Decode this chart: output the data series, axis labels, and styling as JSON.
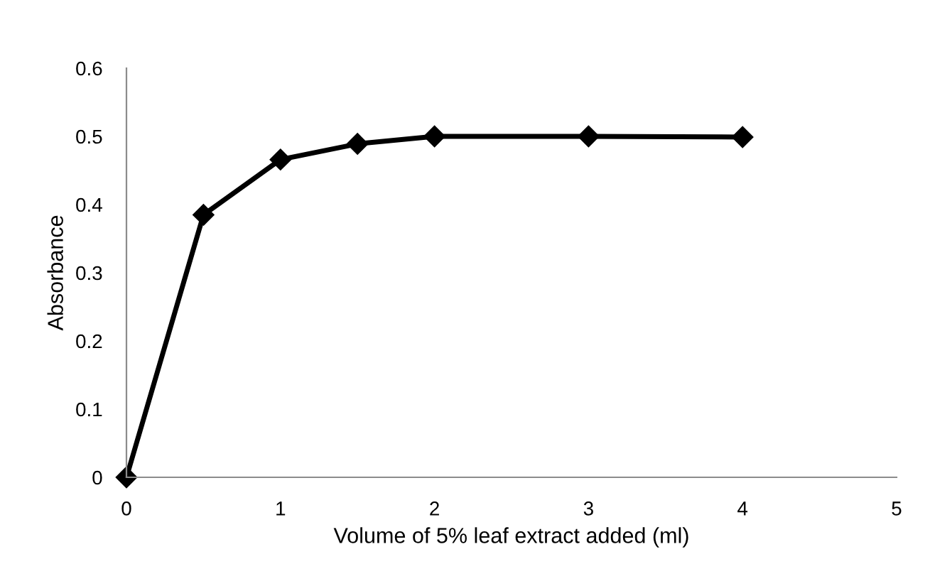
{
  "chart_data": {
    "type": "line",
    "xlabel": "Volume of 5% leaf extract added (ml)",
    "ylabel": "Absorbance",
    "x": [
      0,
      0.5,
      1,
      1.5,
      2,
      3,
      4
    ],
    "series": [
      {
        "color": "#000000",
        "values": [
          0,
          0.385,
          0.466,
          0.489,
          0.5,
          0.5,
          0.499
        ]
      }
    ],
    "xlim": [
      0,
      5
    ],
    "xticks": [
      0,
      1,
      2,
      3,
      4,
      5
    ],
    "ylim": [
      0,
      0.6
    ],
    "yticks": [
      0,
      0.1,
      0.2,
      0.3,
      0.4,
      0.5,
      0.6
    ],
    "grid": false,
    "marker": "diamond",
    "line_style": "solid"
  }
}
